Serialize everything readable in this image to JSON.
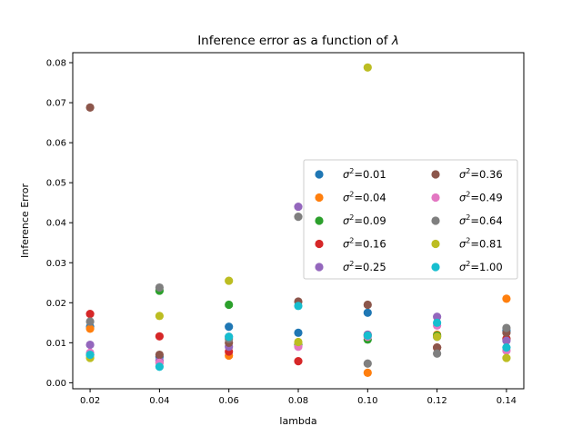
{
  "chart_data": {
    "type": "scatter",
    "title": "Inference error as a function of",
    "title_symbol": "λ",
    "xlabel": "lambda",
    "ylabel": "Inference Error",
    "xlim": [
      0.015,
      0.145
    ],
    "ylim": [
      -0.0015,
      0.0825
    ],
    "x_ticks": [
      "0.02",
      "0.04",
      "0.06",
      "0.08",
      "0.10",
      "0.12",
      "0.14"
    ],
    "x_tick_values": [
      0.02,
      0.04,
      0.06,
      0.08,
      0.1,
      0.12,
      0.14
    ],
    "y_ticks": [
      "0.00",
      "0.01",
      "0.02",
      "0.03",
      "0.04",
      "0.05",
      "0.06",
      "0.07",
      "0.08"
    ],
    "y_tick_values": [
      0.0,
      0.01,
      0.02,
      0.03,
      0.04,
      0.05,
      0.06,
      0.07,
      0.08
    ],
    "grid": false,
    "legend_position": "center-right",
    "legend_columns": 2,
    "x": [
      0.02,
      0.04,
      0.06,
      0.08,
      0.1,
      0.12,
      0.14
    ],
    "series": [
      {
        "label_base": "σ",
        "label_sup": "2",
        "label_value": "=0.01",
        "color": "#1f77b4",
        "values": [
          0.014,
          0.0065,
          0.014,
          0.0125,
          0.0175,
          0.0115,
          0.013
        ]
      },
      {
        "label_base": "σ",
        "label_sup": "2",
        "label_value": "=0.04",
        "color": "#ff7f0e",
        "values": [
          0.0135,
          0.005,
          0.0068,
          0.0095,
          0.0025,
          0.012,
          0.021
        ]
      },
      {
        "label_base": "σ",
        "label_sup": "2",
        "label_value": "=0.09",
        "color": "#2ca02c",
        "values": [
          0.007,
          0.023,
          0.0195,
          0.0095,
          0.0108,
          0.0118,
          0.011
        ]
      },
      {
        "label_base": "σ",
        "label_sup": "2",
        "label_value": "=0.16",
        "color": "#d62728",
        "values": [
          0.0172,
          0.0116,
          0.0078,
          0.0054,
          0.012,
          0.0088,
          0.011
        ]
      },
      {
        "label_base": "σ",
        "label_sup": "2",
        "label_value": "=0.25",
        "color": "#9467bd",
        "values": [
          0.0095,
          0.0055,
          0.009,
          0.044,
          0.012,
          0.0165,
          0.0105
        ]
      },
      {
        "label_base": "σ",
        "label_sup": "2",
        "label_value": "=0.36",
        "color": "#8c564b",
        "values": [
          0.0688,
          0.007,
          0.01,
          0.0203,
          0.0195,
          0.0088,
          0.0125
        ]
      },
      {
        "label_base": "σ",
        "label_sup": "2",
        "label_value": "=0.49",
        "color": "#e377c2",
        "values": [
          0.0075,
          0.005,
          0.0115,
          0.009,
          0.0115,
          0.0143,
          0.008
        ]
      },
      {
        "label_base": "σ",
        "label_sup": "2",
        "label_value": "=0.64",
        "color": "#7f7f7f",
        "values": [
          0.0153,
          0.0238,
          0.011,
          0.0415,
          0.0048,
          0.0073,
          0.0137
        ]
      },
      {
        "label_base": "σ",
        "label_sup": "2",
        "label_value": "=0.81",
        "color": "#bcbd22",
        "values": [
          0.0062,
          0.0167,
          0.0255,
          0.0102,
          0.0788,
          0.0115,
          0.0062
        ]
      },
      {
        "label_base": "σ",
        "label_sup": "2",
        "label_value": "=1.00",
        "color": "#17becf",
        "values": [
          0.007,
          0.004,
          0.0115,
          0.0192,
          0.0118,
          0.015,
          0.0088
        ]
      }
    ]
  }
}
